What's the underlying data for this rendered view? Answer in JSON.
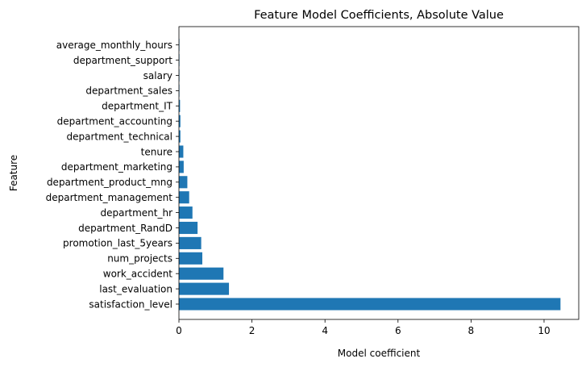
{
  "chart_data": {
    "type": "bar",
    "orientation": "horizontal",
    "title": "Feature Model Coefficients, Absolute Value",
    "xlabel": "Model coefficient",
    "ylabel": "Feature",
    "xlim": [
      0,
      10.95
    ],
    "xticks": [
      "0",
      "2",
      "4",
      "6",
      "8",
      "10"
    ],
    "xtick_values": [
      0,
      2,
      4,
      6,
      8,
      10
    ],
    "grid": false,
    "bar_color": "#1f77b4",
    "categories": [
      "satisfaction_level",
      "last_evaluation",
      "work_accident",
      "num_projects",
      "promotion_last_5years",
      "department_RandD",
      "department_hr",
      "department_management",
      "department_product_mng",
      "department_marketing",
      "tenure",
      "department_technical",
      "department_accounting",
      "department_IT",
      "department_sales",
      "salary",
      "department_support",
      "average_monthly_hours"
    ],
    "values": [
      10.45,
      1.37,
      1.22,
      0.64,
      0.61,
      0.51,
      0.37,
      0.28,
      0.23,
      0.13,
      0.12,
      0.04,
      0.04,
      0.03,
      0.01,
      0.01,
      0.005,
      0.004
    ]
  }
}
